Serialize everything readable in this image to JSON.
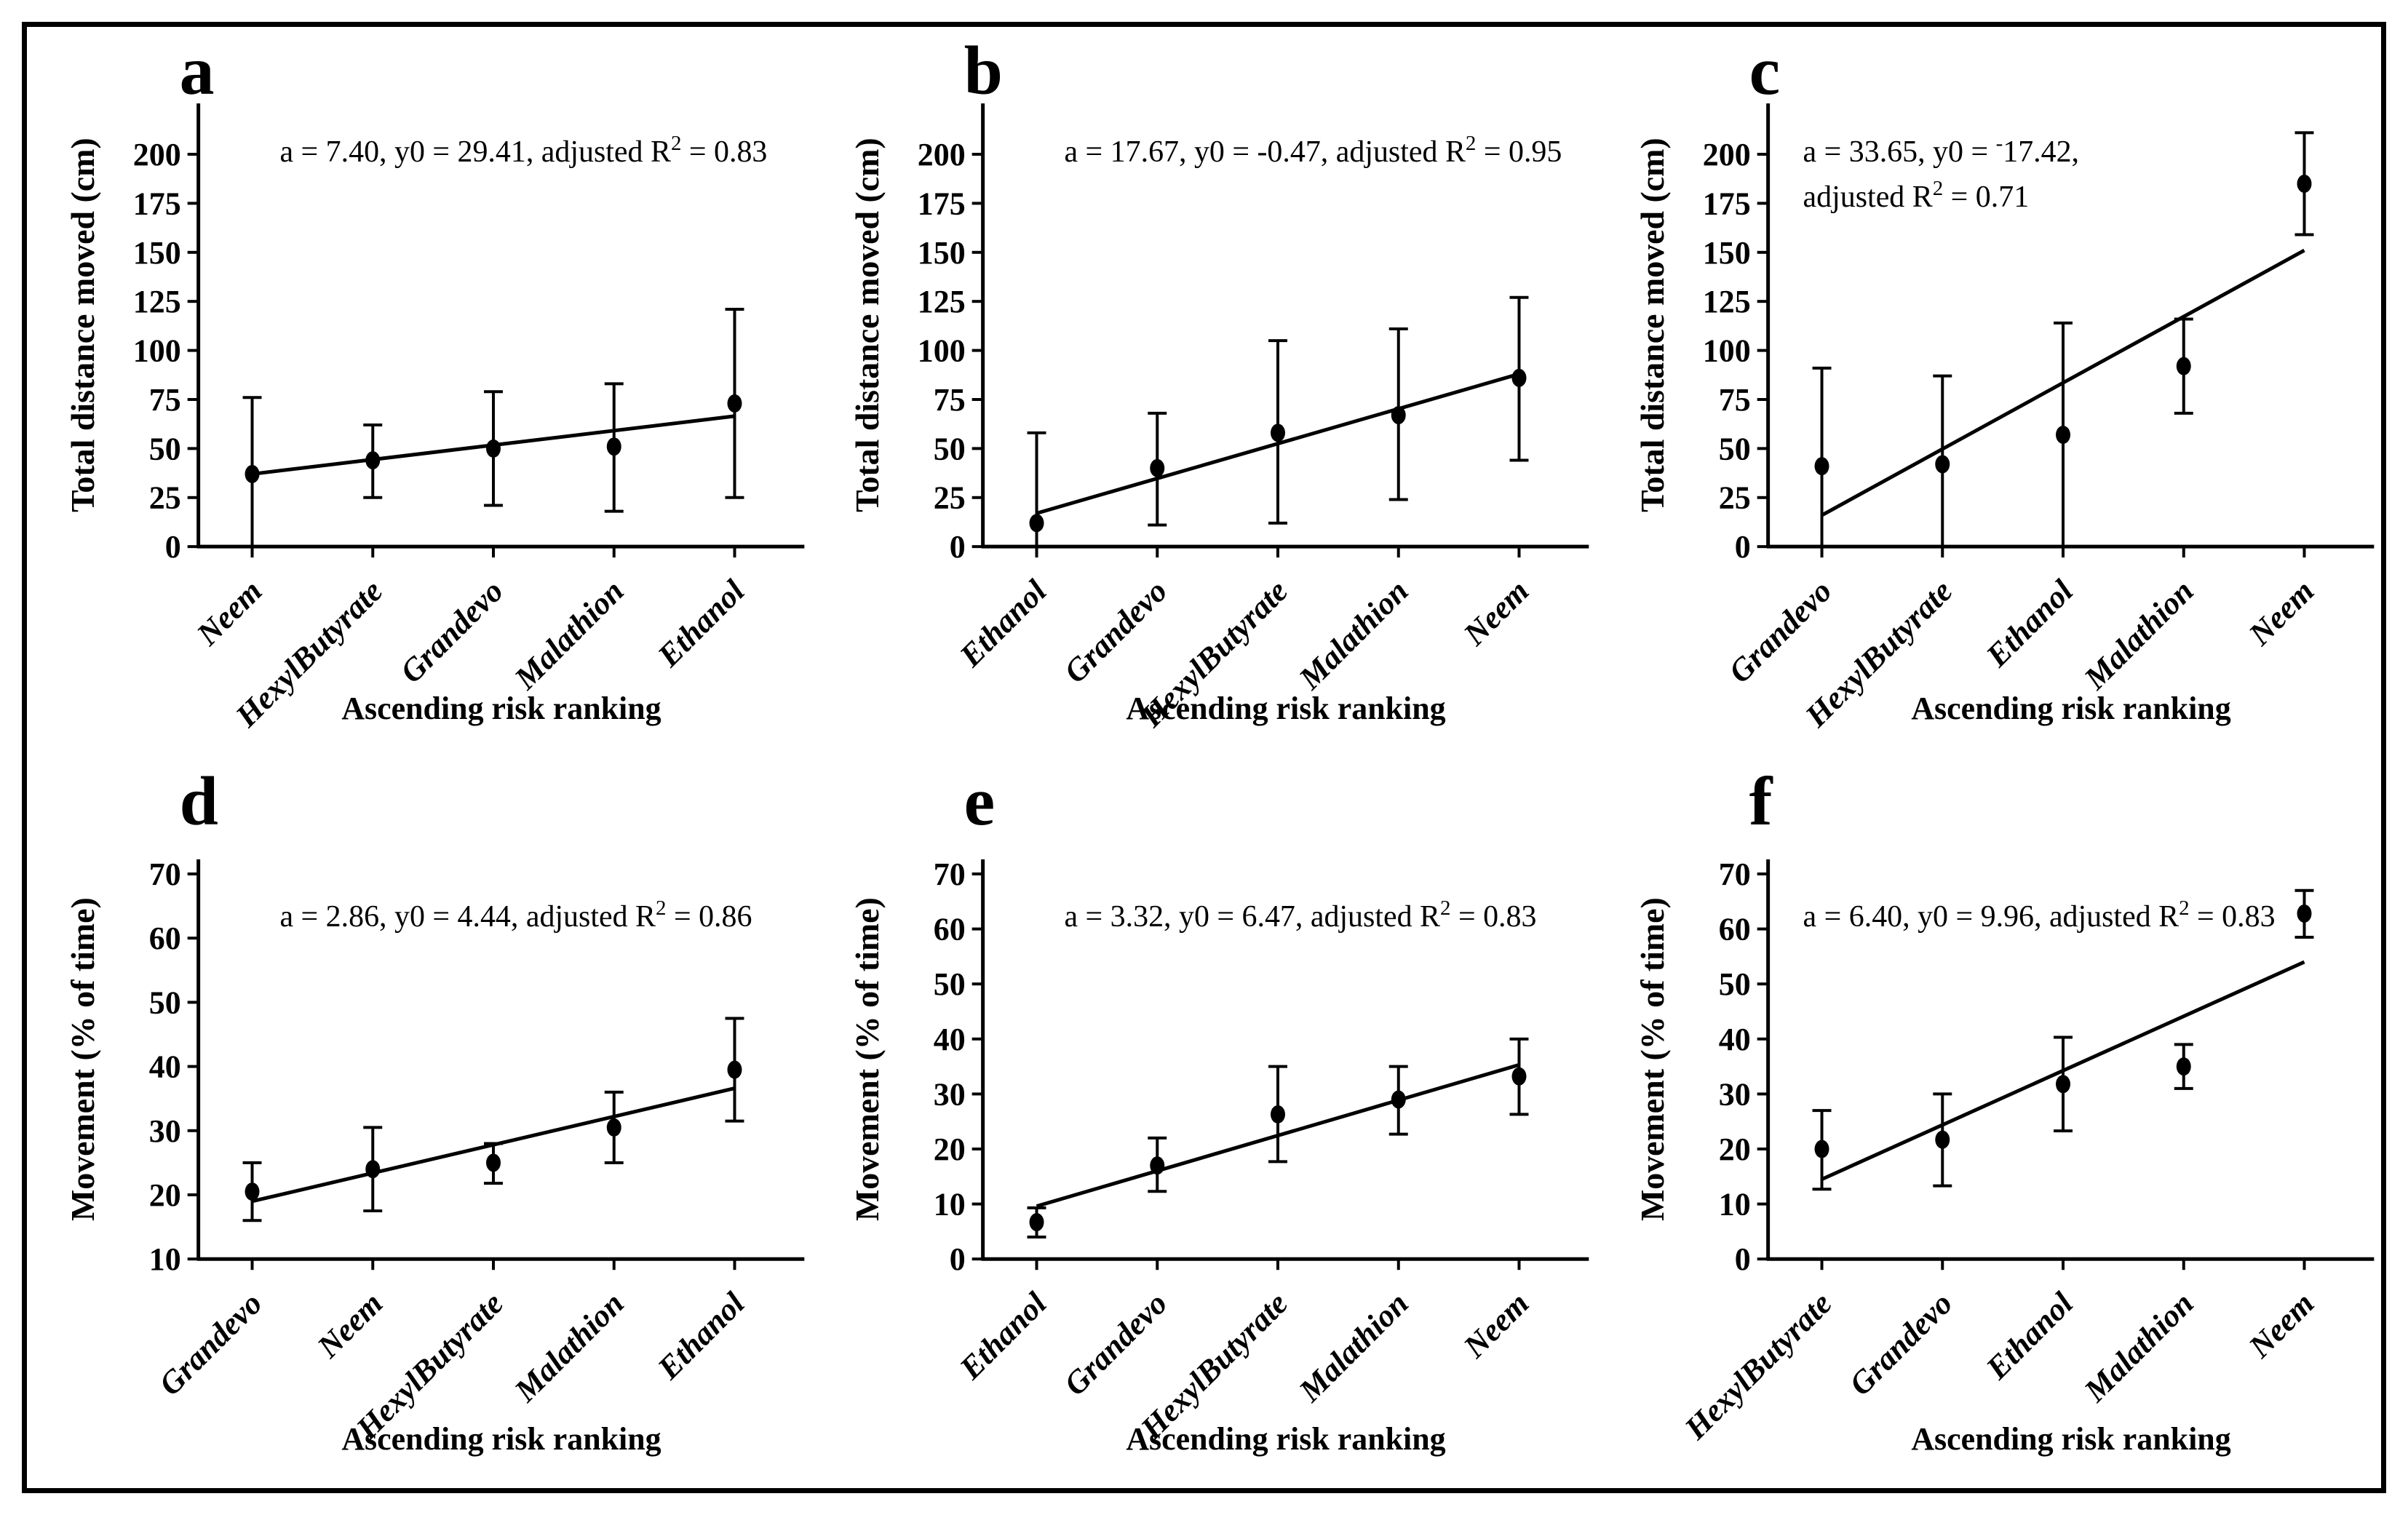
{
  "figure": {
    "background": "#ffffff",
    "border_color": "#000000",
    "ink_color": "#000000"
  },
  "chart_data": [
    {
      "panel_letter": "a",
      "type": "scatter",
      "title": "a = 7.40, y0 = 29.41, adjusted R² = 0.83",
      "annotation_lines": [
        "a = 7.40, y0 = 29.41, adjusted R² = 0.83"
      ],
      "xlabel": "Ascending risk ranking",
      "ylabel": "Total distance moved (cm)",
      "ylim": [
        0,
        200
      ],
      "ytick_step": 25,
      "grid": "off",
      "categories": [
        "Neem",
        "HexylButyrate",
        "Grandevo",
        "Malathion",
        "Ethanol"
      ],
      "values": [
        37,
        44,
        50,
        51,
        73
      ],
      "error_hi": [
        76,
        62,
        79,
        83,
        121
      ],
      "error_lo": [
        -4,
        25,
        21,
        18,
        25
      ],
      "error_lo_capped": [
        false,
        true,
        true,
        true,
        true
      ],
      "trend_line": {
        "y_at_first": 37,
        "y_at_last": 66.5
      },
      "ann_x_offset": 112
    },
    {
      "panel_letter": "b",
      "type": "scatter",
      "title": "a = 17.67, y0 = -0.47, adjusted R² = 0.95",
      "annotation_lines": [
        "a = 17.67, y0 = -0.47, adjusted R² = 0.95"
      ],
      "xlabel": "Ascending risk ranking",
      "ylabel": "Total distance moved (cm)",
      "ylim": [
        0,
        200
      ],
      "ytick_step": 25,
      "grid": "off",
      "categories": [
        "Ethanol",
        "Grandevo",
        "HexylButyrate",
        "Malathion",
        "Neem"
      ],
      "values": [
        12,
        40,
        58,
        67,
        86
      ],
      "error_hi": [
        58,
        68,
        105,
        111,
        127
      ],
      "error_lo": [
        0,
        11,
        12,
        24,
        44
      ],
      "error_lo_capped": [
        false,
        true,
        true,
        true,
        true
      ],
      "trend_line": {
        "y_at_first": 17,
        "y_at_last": 88
      },
      "ann_x_offset": 112
    },
    {
      "panel_letter": "c",
      "type": "scatter",
      "title": "a = 33.65, y0 = ⁻17.42, adjusted R² = 0.71",
      "annotation_lines": [
        "a = 33.65, y0 = ⁻17.42,",
        "adjusted R² = 0.71"
      ],
      "xlabel": "Ascending risk ranking",
      "ylabel": "Total distance moved (cm)",
      "ylim": [
        0,
        200
      ],
      "ytick_step": 25,
      "grid": "off",
      "categories": [
        "Grandevo",
        "HexylButyrate",
        "Ethanol",
        "Malathion",
        "Neem"
      ],
      "values": [
        41,
        42,
        57,
        92,
        185
      ],
      "error_hi": [
        91,
        87,
        114,
        116,
        211
      ],
      "error_lo": [
        0,
        0,
        0,
        68,
        159
      ],
      "error_lo_capped": [
        false,
        false,
        true,
        true,
        true
      ],
      "trend_line": {
        "y_at_first": 16,
        "y_at_last": 151
      },
      "ann_x_offset": 48
    },
    {
      "panel_letter": "d",
      "type": "scatter",
      "title": "a = 2.86, y0 = 4.44, adjusted R² = 0.86",
      "annotation_lines": [
        "a = 2.86, y0 = 4.44, adjusted R² = 0.86"
      ],
      "xlabel": "Ascending risk ranking",
      "ylabel": "Movement (% of time)",
      "ylim": [
        10,
        70
      ],
      "ytick_step": 10,
      "grid": "off",
      "categories": [
        "Grandevo",
        "Neem",
        "HexylButyrate",
        "Malathion",
        "Ethanol"
      ],
      "values": [
        20.5,
        24,
        25,
        30.5,
        39.5
      ],
      "error_hi": [
        25,
        30.5,
        28,
        36,
        47.5
      ],
      "error_lo": [
        16,
        17.5,
        21.8,
        25,
        31.5
      ],
      "error_lo_capped": [
        true,
        true,
        true,
        true,
        true
      ],
      "trend_line": {
        "y_at_first": 19,
        "y_at_last": 36.6
      },
      "ann_x_offset": 112
    },
    {
      "panel_letter": "e",
      "type": "scatter",
      "title": "a = 3.32, y0 = 6.47, adjusted R² = 0.83",
      "annotation_lines": [
        "a = 3.32, y0 = 6.47, adjusted R² = 0.83"
      ],
      "xlabel": "Ascending risk ranking",
      "ylabel": "Movement (% of time)",
      "ylim": [
        0,
        70
      ],
      "ytick_step": 10,
      "grid": "off",
      "categories": [
        "Ethanol",
        "Grandevo",
        "HexylButyrate",
        "Malathion",
        "Neem"
      ],
      "values": [
        6.7,
        17,
        26.3,
        29,
        33.2
      ],
      "error_hi": [
        9.3,
        22,
        35,
        35,
        40
      ],
      "error_lo": [
        4,
        12.3,
        17.7,
        22.7,
        26.3
      ],
      "error_lo_capped": [
        true,
        true,
        true,
        true,
        true
      ],
      "trend_line": {
        "y_at_first": 9.6,
        "y_at_last": 35.3
      },
      "ann_x_offset": 112
    },
    {
      "panel_letter": "f",
      "type": "scatter",
      "title": "a = 6.40, y0 = 9.96, adjusted R² = 0.83",
      "annotation_lines": [
        "a = 6.40, y0 = 9.96, adjusted R² = 0.83"
      ],
      "xlabel": "Ascending risk ranking",
      "ylabel": "Movement (% of time)",
      "ylim": [
        0,
        70
      ],
      "ytick_step": 10,
      "grid": "off",
      "categories": [
        "HexylButyrate",
        "Grandevo",
        "Ethanol",
        "Malathion",
        "Neem"
      ],
      "values": [
        20,
        21.7,
        31.8,
        35,
        62.8
      ],
      "error_hi": [
        27,
        30,
        40.3,
        39,
        67
      ],
      "error_lo": [
        12.7,
        13.3,
        23.3,
        31,
        58.5
      ],
      "error_lo_capped": [
        true,
        true,
        true,
        true,
        true
      ],
      "trend_line": {
        "y_at_first": 14.5,
        "y_at_last": 54
      },
      "ann_x_offset": 48
    }
  ]
}
